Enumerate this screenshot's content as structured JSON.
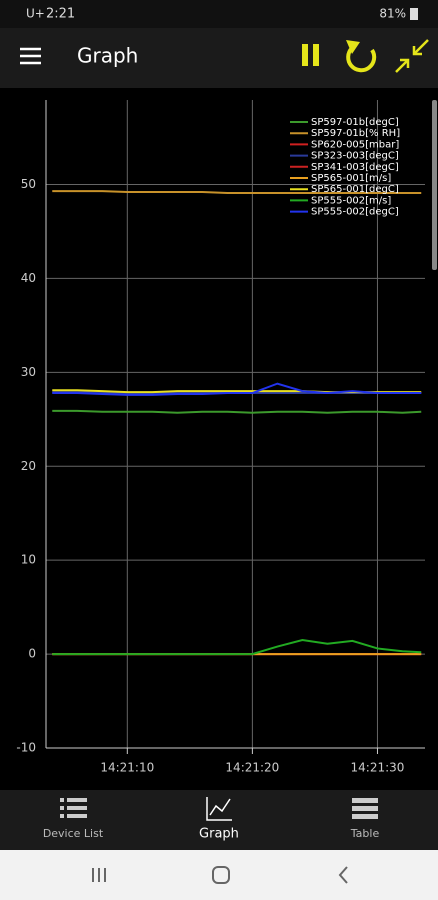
{
  "status_bar": {
    "carrier": "U+",
    "time": "2:21",
    "battery": "81%"
  },
  "app_bar": {
    "title": "Graph"
  },
  "chart_data": {
    "type": "line",
    "x": [
      4,
      6,
      8,
      10,
      12,
      14,
      16,
      18,
      20,
      22,
      24,
      26,
      28,
      30,
      32,
      33.5
    ],
    "xlim": [
      3.5,
      33.8
    ],
    "xticks": [
      {
        "value": 10,
        "label": "14:21:10"
      },
      {
        "value": 20,
        "label": "14:21:20"
      },
      {
        "value": 30,
        "label": "14:21:30"
      }
    ],
    "ylim": [
      -10,
      59
    ],
    "yticks": [
      -10,
      0,
      10,
      20,
      30,
      40,
      50
    ],
    "grid": true,
    "legend": "upper right",
    "series": [
      {
        "name": "SP597-01b[degC]",
        "color": "#3c9a2c",
        "values": [
          25.9,
          25.9,
          25.8,
          25.8,
          25.8,
          25.7,
          25.8,
          25.8,
          25.7,
          25.8,
          25.8,
          25.7,
          25.8,
          25.8,
          25.7,
          25.8
        ]
      },
      {
        "name": "SP597-01b[% RH]",
        "color": "#c8922a",
        "values": [
          49.3,
          49.3,
          49.3,
          49.2,
          49.2,
          49.2,
          49.2,
          49.1,
          49.1,
          49.1,
          49.1,
          49.1,
          49.1,
          49.1,
          49.1,
          49.1
        ]
      },
      {
        "name": "SP620-005[mbar]",
        "color": "#d02020",
        "values": [
          0,
          0,
          0,
          0,
          0,
          0,
          0,
          0,
          0,
          0,
          0,
          0,
          0,
          0,
          0,
          0
        ]
      },
      {
        "name": "SP323-003[degC]",
        "color": "#2a3a9a",
        "values": [
          27.9,
          27.9,
          27.8,
          27.8,
          27.8,
          27.8,
          27.8,
          27.8,
          27.8,
          27.8,
          27.8,
          27.8,
          27.8,
          27.8,
          27.8,
          27.8
        ]
      },
      {
        "name": "SP341-003[degC]",
        "color": "#cc2222",
        "values": [
          0,
          0,
          0,
          0,
          0,
          0,
          0,
          0,
          0,
          0,
          0,
          0,
          0,
          0,
          0,
          0
        ]
      },
      {
        "name": "SP565-001[m/s]",
        "color": "#e8a020",
        "values": [
          0,
          0,
          0,
          0,
          0,
          0,
          0,
          0,
          0,
          0,
          0,
          0,
          0,
          0,
          0,
          0
        ]
      },
      {
        "name": "SP565-001[degC]",
        "color": "#e8e020",
        "values": [
          28.1,
          28.1,
          28.0,
          27.9,
          27.9,
          28.0,
          28.0,
          28.0,
          28.0,
          28.0,
          28.0,
          27.9,
          27.9,
          27.9,
          27.9,
          27.9
        ]
      },
      {
        "name": "SP555-002[m/s]",
        "color": "#22aa22",
        "values": [
          0,
          0,
          0,
          0,
          0,
          0,
          0,
          0,
          0,
          0.8,
          1.5,
          1.1,
          1.4,
          0.6,
          0.3,
          0.2
        ]
      },
      {
        "name": "SP555-002[degC]",
        "color": "#2233ee",
        "values": [
          27.8,
          27.8,
          27.7,
          27.6,
          27.6,
          27.7,
          27.7,
          27.8,
          27.8,
          28.8,
          28.0,
          27.8,
          28.0,
          27.8,
          27.8,
          27.8
        ]
      }
    ]
  },
  "bottom_nav": {
    "items": [
      "Device List",
      "Graph",
      "Table"
    ]
  }
}
